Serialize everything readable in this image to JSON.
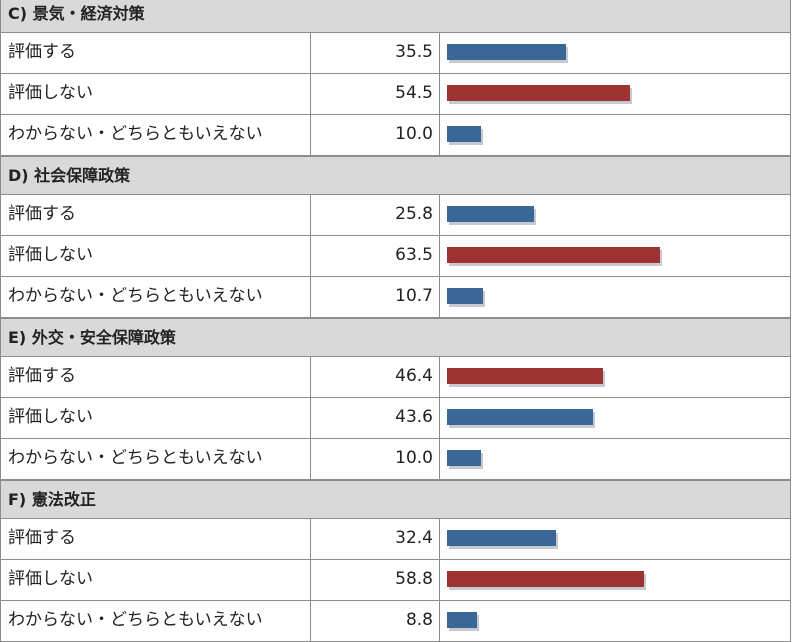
{
  "colors": {
    "blue": "#3a6796",
    "red": "#9c3232"
  },
  "chart_data": {
    "type": "bar",
    "max_value": 100,
    "sections": [
      {
        "title": "C) 景気・経済対策",
        "rows": [
          {
            "label": "評価する",
            "value": 35.5,
            "display": "35.5",
            "color": "blue"
          },
          {
            "label": "評価しない",
            "value": 54.5,
            "display": "54.5",
            "color": "red"
          },
          {
            "label": "わからない・どちらともいえない",
            "value": 10.0,
            "display": "10.0",
            "color": "blue"
          }
        ]
      },
      {
        "title": "D) 社会保障政策",
        "rows": [
          {
            "label": "評価する",
            "value": 25.8,
            "display": "25.8",
            "color": "blue"
          },
          {
            "label": "評価しない",
            "value": 63.5,
            "display": "63.5",
            "color": "red"
          },
          {
            "label": "わからない・どちらともいえない",
            "value": 10.7,
            "display": "10.7",
            "color": "blue"
          }
        ]
      },
      {
        "title": "E) 外交・安全保障政策",
        "rows": [
          {
            "label": "評価する",
            "value": 46.4,
            "display": "46.4",
            "color": "red"
          },
          {
            "label": "評価しない",
            "value": 43.6,
            "display": "43.6",
            "color": "blue"
          },
          {
            "label": "わからない・どちらともいえない",
            "value": 10.0,
            "display": "10.0",
            "color": "blue"
          }
        ]
      },
      {
        "title": "F) 憲法改正",
        "rows": [
          {
            "label": "評価する",
            "value": 32.4,
            "display": "32.4",
            "color": "blue"
          },
          {
            "label": "評価しない",
            "value": 58.8,
            "display": "58.8",
            "color": "red"
          },
          {
            "label": "わからない・どちらともいえない",
            "value": 8.8,
            "display": "8.8",
            "color": "blue"
          }
        ]
      }
    ]
  }
}
